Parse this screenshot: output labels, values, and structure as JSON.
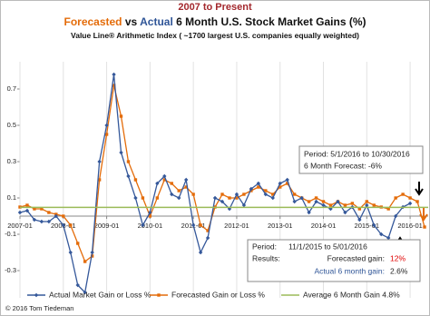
{
  "chart_data": {
    "type": "line",
    "title_top": "2007 to Present",
    "title_parts": [
      "Forecasted",
      "vs",
      "Actual",
      "6 Month U.S. Stock Market Gains (%)"
    ],
    "subtitle": "Value Line® Arithmetic Index ( ~1700 largest U.S. companies equally weighted)",
    "xlim": [
      "2007-01",
      "2016-06"
    ],
    "xticks": [
      "2007-01",
      "2008-01",
      "2009-01",
      "2010-01",
      "2011-01",
      "2012-01",
      "2013-01",
      "2014-01",
      "2015-01",
      "2016-01"
    ],
    "ylim": [
      -0.45,
      0.85
    ],
    "yticks": [
      0.7,
      0.5,
      0.3,
      0.1,
      -0.1,
      -0.3
    ],
    "grid": true,
    "series": [
      {
        "name": "Actual Market Gain or Loss %",
        "color": "#35589a",
        "marker": "diamond",
        "x": [
          "2007-01",
          "2007-03",
          "2007-05",
          "2007-07",
          "2007-09",
          "2007-11",
          "2008-01",
          "2008-03",
          "2008-05",
          "2008-07",
          "2008-09",
          "2008-11",
          "2009-01",
          "2009-03",
          "2009-05",
          "2009-07",
          "2009-09",
          "2009-11",
          "2010-01",
          "2010-03",
          "2010-05",
          "2010-07",
          "2010-09",
          "2010-11",
          "2011-01",
          "2011-03",
          "2011-05",
          "2011-07",
          "2011-09",
          "2011-11",
          "2012-01",
          "2012-03",
          "2012-05",
          "2012-07",
          "2012-09",
          "2012-11",
          "2013-01",
          "2013-03",
          "2013-05",
          "2013-07",
          "2013-09",
          "2013-11",
          "2014-01",
          "2014-03",
          "2014-05",
          "2014-07",
          "2014-09",
          "2014-11",
          "2015-01",
          "2015-03",
          "2015-05",
          "2015-07",
          "2015-09",
          "2015-11",
          "2016-01"
        ],
        "values": [
          0.02,
          0.03,
          -0.02,
          -0.03,
          -0.03,
          0.0,
          -0.05,
          -0.2,
          -0.38,
          -0.42,
          -0.2,
          0.3,
          0.5,
          0.78,
          0.35,
          0.22,
          0.1,
          -0.05,
          0.02,
          0.18,
          0.22,
          0.12,
          0.1,
          0.2,
          -0.05,
          -0.2,
          -0.12,
          0.1,
          0.08,
          0.04,
          0.12,
          0.06,
          0.15,
          0.18,
          0.12,
          0.1,
          0.18,
          0.2,
          0.08,
          0.1,
          0.02,
          0.08,
          0.06,
          0.04,
          0.08,
          0.02,
          0.05,
          -0.02,
          0.06,
          -0.05,
          -0.1,
          -0.12,
          0.0,
          0.05,
          0.07
        ]
      },
      {
        "name": "Forecasted Gain or Loss %",
        "color": "#e46c0a",
        "marker": "square",
        "x": [
          "2007-01",
          "2007-03",
          "2007-05",
          "2007-07",
          "2007-09",
          "2007-11",
          "2008-01",
          "2008-03",
          "2008-05",
          "2008-07",
          "2008-09",
          "2008-11",
          "2009-01",
          "2009-03",
          "2009-05",
          "2009-07",
          "2009-09",
          "2009-11",
          "2010-01",
          "2010-03",
          "2010-05",
          "2010-07",
          "2010-09",
          "2010-11",
          "2011-01",
          "2011-03",
          "2011-05",
          "2011-07",
          "2011-09",
          "2011-11",
          "2012-01",
          "2012-03",
          "2012-05",
          "2012-07",
          "2012-09",
          "2012-11",
          "2013-01",
          "2013-03",
          "2013-05",
          "2013-07",
          "2013-09",
          "2013-11",
          "2014-01",
          "2014-03",
          "2014-05",
          "2014-07",
          "2014-09",
          "2014-11",
          "2015-01",
          "2015-03",
          "2015-05",
          "2015-07",
          "2015-09",
          "2015-11",
          "2016-01",
          "2016-03",
          "2016-05"
        ],
        "values": [
          0.05,
          0.06,
          0.04,
          0.04,
          0.02,
          0.01,
          0.0,
          -0.05,
          -0.15,
          -0.25,
          -0.22,
          0.2,
          0.45,
          0.72,
          0.55,
          0.3,
          0.2,
          0.1,
          0.0,
          0.1,
          0.2,
          0.18,
          0.14,
          0.16,
          0.12,
          -0.05,
          -0.08,
          0.05,
          0.12,
          0.1,
          0.1,
          0.12,
          0.14,
          0.16,
          0.14,
          0.12,
          0.16,
          0.18,
          0.12,
          0.1,
          0.08,
          0.1,
          0.08,
          0.06,
          0.08,
          0.06,
          0.07,
          0.04,
          0.08,
          0.06,
          0.05,
          0.04,
          0.1,
          0.12,
          0.1,
          0.08,
          -0.06
        ]
      },
      {
        "name": "Average 6 Month Gain 4.8%",
        "color": "#9bbb59",
        "marker": "none",
        "value": 0.048
      }
    ],
    "annotations": {
      "forecast_box": [
        "Period: 5/1/2016 to 10/30/2016",
        "6 Month Forecast: -6%"
      ],
      "results_box": {
        "period_label": "Period:",
        "period": "11/1/2015 to 5/01/2016",
        "results_label": "Results:",
        "forecast_label": "Forecasted gain:",
        "forecast_value": "12%",
        "actual_label": "Actual 6 month gain:",
        "actual_value": "2.6%"
      }
    },
    "copyright": "© 2016 Tom Tiedeman"
  }
}
